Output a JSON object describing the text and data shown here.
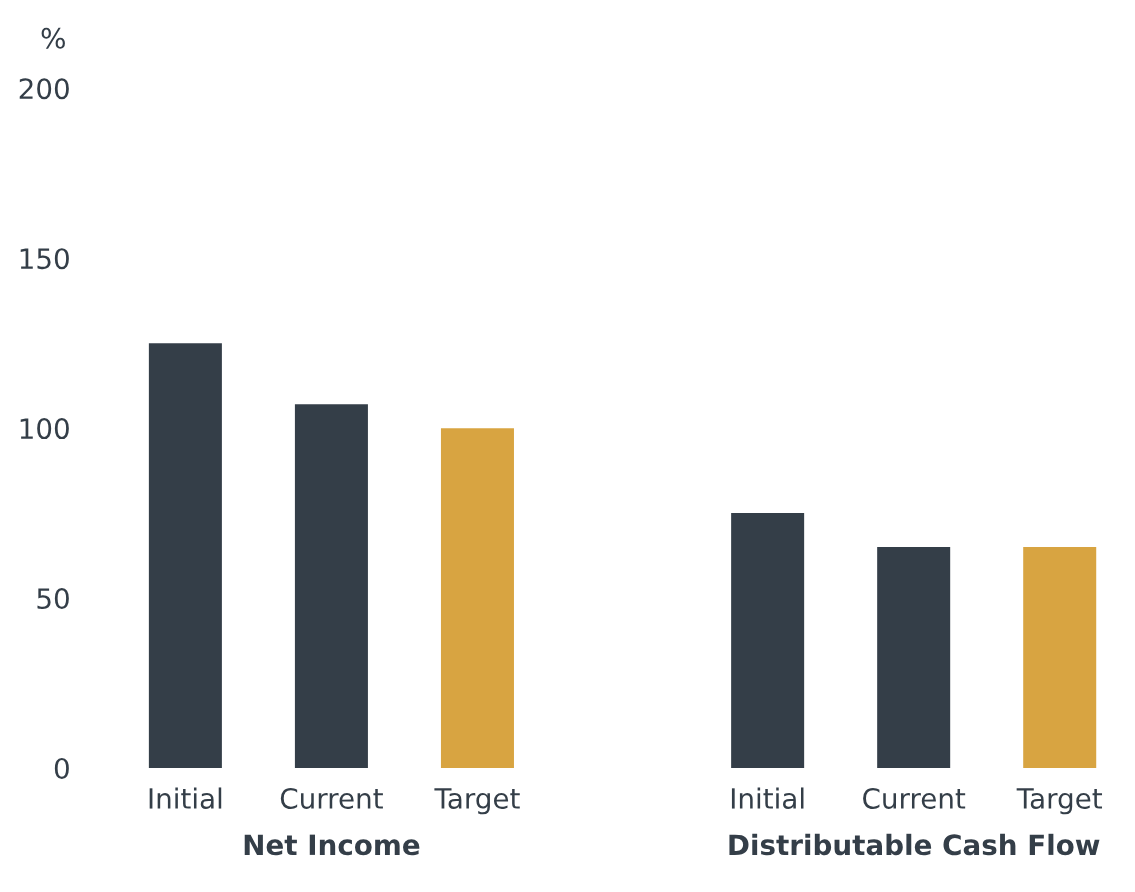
{
  "chart_data": [
    {
      "type": "bar",
      "ylabel": "%",
      "xlabel": "Net Income",
      "categories": [
        "Initial",
        "Current",
        "Target"
      ],
      "values": [
        125,
        107,
        100
      ],
      "colors": [
        "#343e48",
        "#343e48",
        "#d8a441"
      ],
      "ylim": [
        0,
        200
      ],
      "yticks": [
        0,
        50,
        100,
        150,
        200
      ],
      "grid": false
    },
    {
      "type": "bar",
      "xlabel": "Distributable Cash Flow",
      "categories": [
        "Initial",
        "Current",
        "Target"
      ],
      "values": [
        75,
        65,
        65
      ],
      "colors": [
        "#343e48",
        "#343e48",
        "#d8a441"
      ],
      "ylim": [
        0,
        200
      ],
      "yticks": [
        0,
        50,
        100,
        150,
        200
      ],
      "tick_labels": "x",
      "grid": false
    }
  ]
}
